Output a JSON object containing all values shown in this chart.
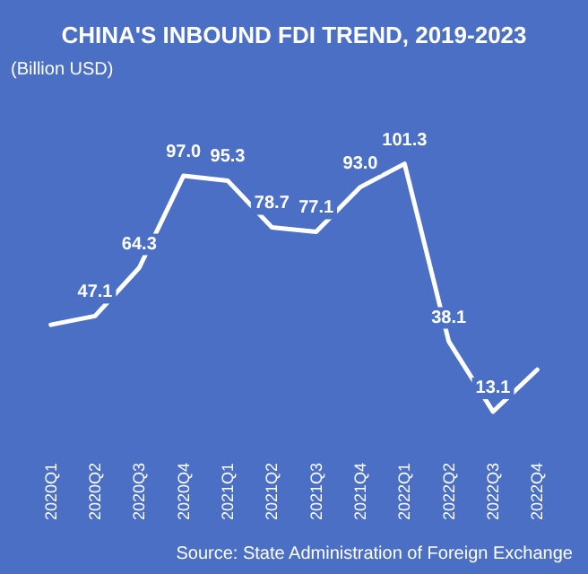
{
  "chart_data": {
    "type": "line",
    "title": "CHINA'S INBOUND FDI TREND, 2019-2023",
    "ylabel": "(Billion USD)",
    "annotations": [
      "Source: State Administration of Foreign Exchange"
    ],
    "categories": [
      "2020Q1",
      "2020Q2",
      "2020Q3",
      "2020Q4",
      "2021Q1",
      "2021Q2",
      "2021Q3",
      "2021Q4",
      "2022Q1",
      "2022Q2",
      "2022Q3",
      "2022Q4"
    ],
    "series": [
      {
        "color": "#ffffff",
        "values": [
          44,
          47.1,
          64.3,
          97.0,
          95.3,
          78.7,
          77.1,
          93.0,
          101.3,
          38.1,
          13.1,
          28
        ],
        "value_labels": [
          null,
          "47.1",
          "64.3",
          "97.0",
          "95.3",
          "78.7",
          "77.1",
          "93.0",
          "101.3",
          "38.1",
          "13.1",
          null
        ]
      }
    ],
    "marker": "none",
    "line_style": "solid",
    "grid": false
  }
}
